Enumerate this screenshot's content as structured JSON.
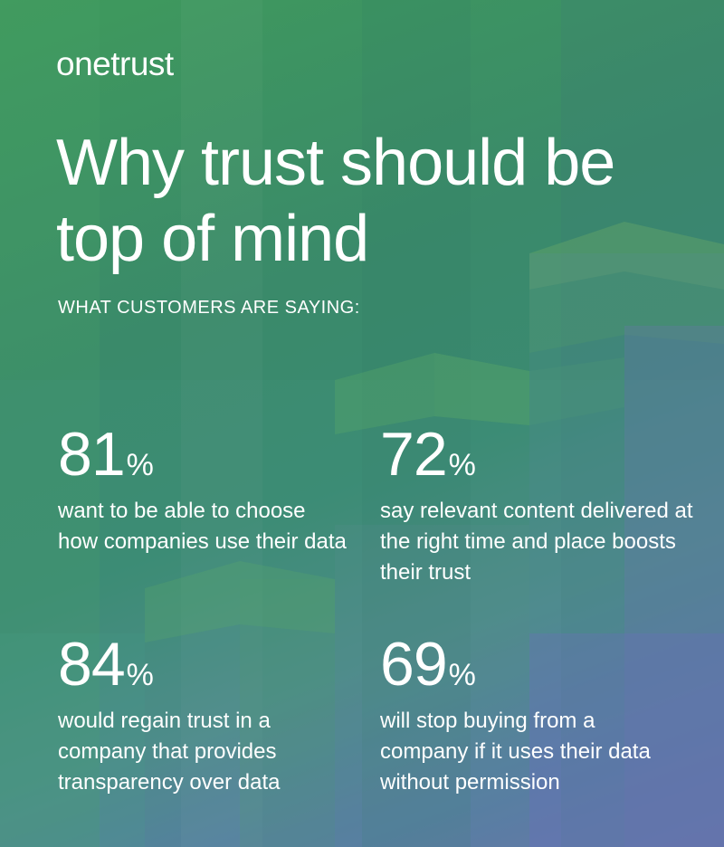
{
  "brand": {
    "logo_text": "onetrust"
  },
  "header": {
    "title": "Why trust should be top of mind",
    "subtitle": "WHAT CUSTOMERS ARE SAYING:"
  },
  "stats": [
    {
      "number": "81",
      "unit": "%",
      "text": "want to be able to choose how companies use their data"
    },
    {
      "number": "72",
      "unit": "%",
      "text": "say relevant content delivered at the right time and place boosts their trust"
    },
    {
      "number": "84",
      "unit": "%",
      "text": "would regain trust in a company that provides transparency over data"
    },
    {
      "number": "69",
      "unit": "%",
      "text": "will stop buying from a company if it uses their data without permission"
    }
  ],
  "colors": {
    "green": "#3f9a5c",
    "teal": "#3a8a6a",
    "purple": "#6e6fb6",
    "text": "#ffffff"
  }
}
